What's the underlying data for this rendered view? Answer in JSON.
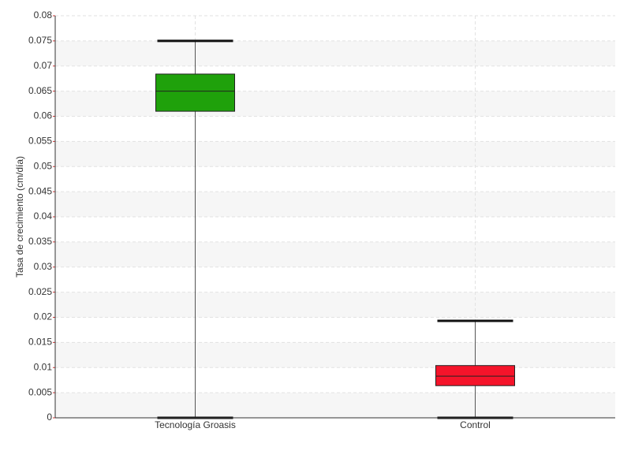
{
  "chart_data": {
    "type": "box",
    "y_label": "Tasa de crecimiento (cm/día)",
    "categories": [
      "Tecnología Groasis",
      "Control"
    ],
    "boxes": [
      {
        "min": 0,
        "q1": 0.061,
        "median": 0.065,
        "q3": 0.0684,
        "max": 0.075,
        "color": "#1fa10b"
      },
      {
        "min": 0,
        "q1": 0.0064,
        "median": 0.0083,
        "q3": 0.0104,
        "max": 0.0193,
        "color": "#f5142a"
      }
    ],
    "ylim": [
      0,
      0.08
    ],
    "yticks": [
      0,
      0.005,
      0.01,
      0.015,
      0.02,
      0.025,
      0.03,
      0.035,
      0.04,
      0.045,
      0.05,
      0.055,
      0.06,
      0.065,
      0.07,
      0.075,
      0.08
    ],
    "grid": true
  }
}
